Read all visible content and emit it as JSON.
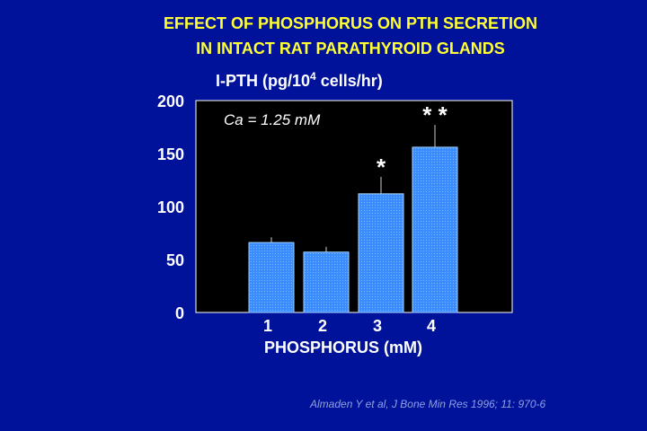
{
  "slide": {
    "background": "#00129a",
    "title_line1": "EFFECT OF PHOSPHORUS ON PTH SECRETION",
    "title_line2": "IN INTACT RAT PARATHYROID GLANDS",
    "title_color": "#ffff33",
    "citation": "Almaden Y et al, J Bone Min Res 1996; 11: 970-6"
  },
  "chart_data": {
    "type": "bar",
    "title": "",
    "ylabel_prefix": "I-PTH (pg/10",
    "ylabel_superscript": "4",
    "ylabel_suffix": " cells/hr)",
    "xlabel": "PHOSPHORUS (mM)",
    "annotation": "Ca = 1.25 mM",
    "categories": [
      "1",
      "2",
      "3",
      "4"
    ],
    "values": [
      66,
      57,
      112,
      156
    ],
    "error_upper": [
      71,
      62,
      128,
      177
    ],
    "significance": [
      "",
      "",
      "*",
      "* *"
    ],
    "ylim": [
      0,
      200
    ],
    "yticks": [
      "0",
      "50",
      "100",
      "150",
      "200"
    ],
    "plot_background": "#000000",
    "bar_color": "#3b8cff",
    "bar_border": "#9fd0ff",
    "grid": false
  }
}
